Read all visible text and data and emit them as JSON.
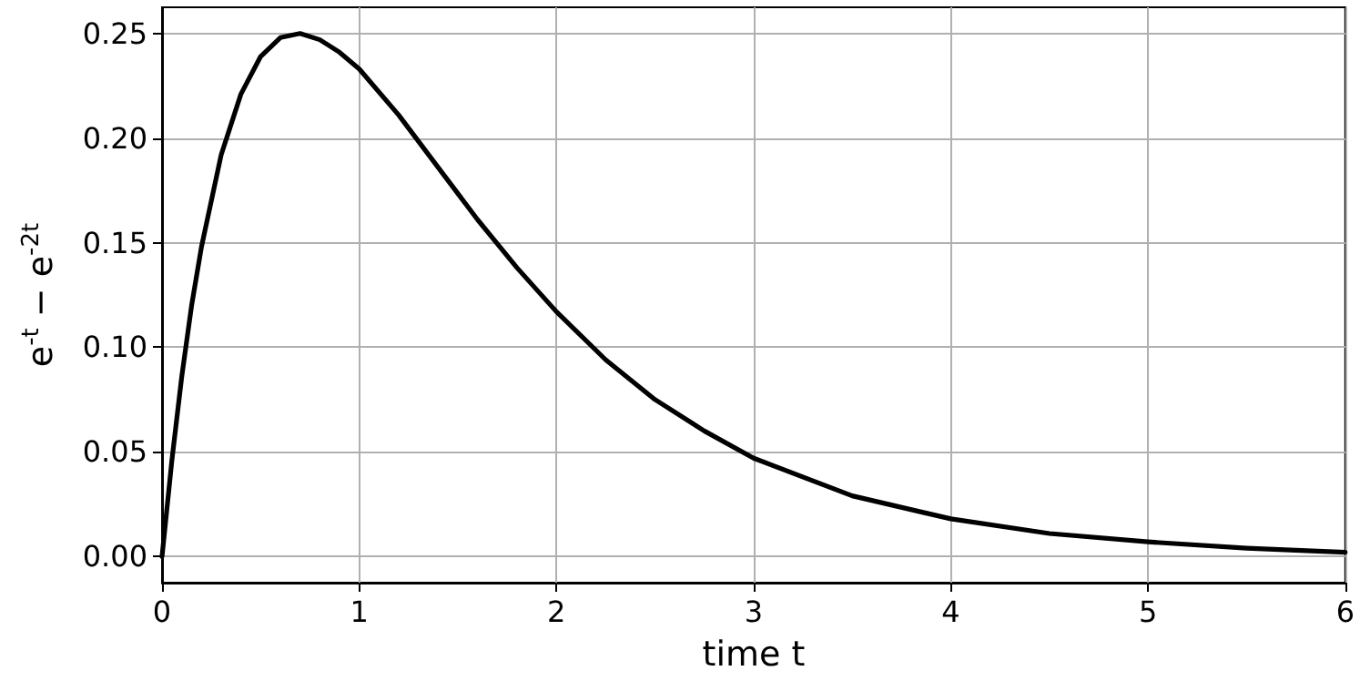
{
  "chart_data": {
    "type": "line",
    "xlabel": "time t",
    "ylabel": "e$^{-t}$ − e$^{-2t}$",
    "series": [
      {
        "color": "#000000",
        "x": [
          0,
          0.05,
          0.1,
          0.15,
          0.2,
          0.3,
          0.4,
          0.5,
          0.6,
          0.7,
          0.8,
          0.9,
          1.0,
          1.2,
          1.4,
          1.6,
          1.8,
          2.0,
          2.25,
          2.5,
          2.75,
          3.0,
          3.5,
          4.0,
          4.5,
          5.0,
          5.5,
          6.0
        ],
        "values": [
          0,
          0.046,
          0.086,
          0.12,
          0.148,
          0.192,
          0.221,
          0.239,
          0.248,
          0.25,
          0.247,
          0.241,
          0.233,
          0.211,
          0.186,
          0.161,
          0.138,
          0.117,
          0.094,
          0.075,
          0.06,
          0.047,
          0.029,
          0.018,
          0.011,
          0.007,
          0.004,
          0.002
        ]
      }
    ],
    "xlim": [
      0,
      6
    ],
    "xticks": [
      0,
      1,
      2,
      3,
      4,
      5,
      6
    ],
    "ylim": [
      -0.0125,
      0.2625
    ],
    "yticks": [
      {
        "value": 0,
        "label": "0.00"
      },
      {
        "value": 0.05,
        "label": "0.05"
      },
      {
        "value": 0.1,
        "label": "0.10"
      },
      {
        "value": 0.15,
        "label": "0.15"
      },
      {
        "value": 0.2,
        "label": "0.20"
      },
      {
        "value": 0.25,
        "label": "0.25"
      }
    ],
    "grid": true,
    "marker": "none",
    "line_style": "solid"
  }
}
